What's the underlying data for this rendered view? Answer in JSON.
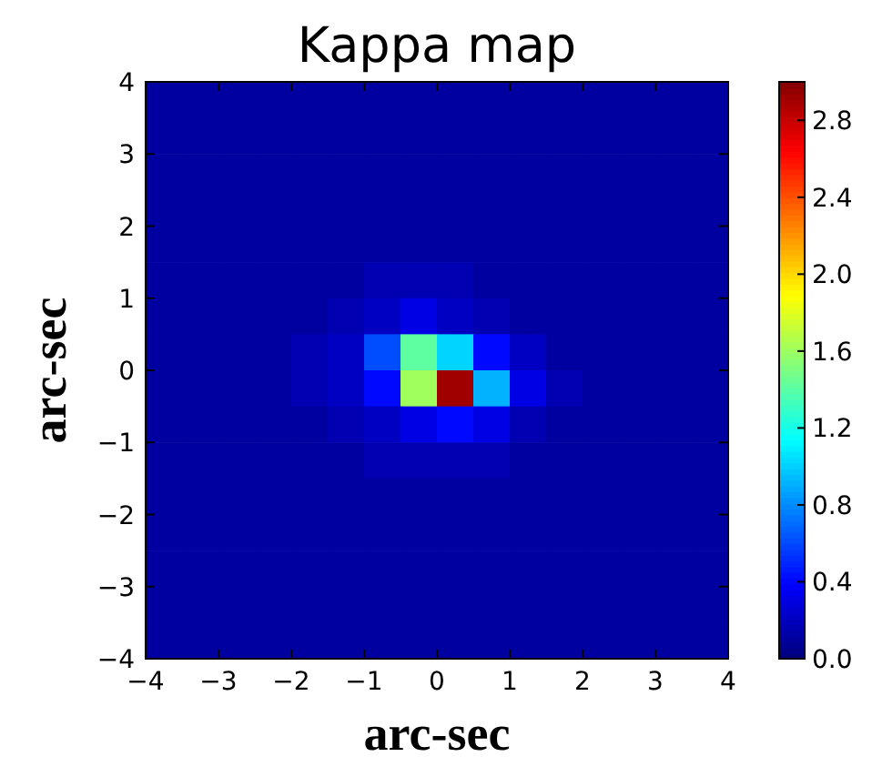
{
  "chart_data": {
    "type": "heatmap",
    "title": "Kappa map",
    "xlabel": "arc-sec",
    "ylabel": "arc-sec",
    "x": [
      -3.75,
      -3.25,
      -2.75,
      -2.25,
      -1.75,
      -1.25,
      -0.75,
      -0.25,
      0.25,
      0.75,
      1.25,
      1.75,
      2.25,
      2.75,
      3.25,
      3.75
    ],
    "y": [
      3.75,
      3.25,
      2.75,
      2.25,
      1.75,
      1.25,
      0.75,
      0.25,
      -0.25,
      -0.75,
      -1.25,
      -1.75,
      -2.25,
      -2.75,
      -3.25,
      -3.75
    ],
    "xlim": [
      -4,
      4
    ],
    "xticks": [
      -4,
      -3,
      -2,
      -1,
      0,
      1,
      2,
      3,
      4
    ],
    "ylim": [
      -4,
      4
    ],
    "yticks": [
      -4,
      -3,
      -2,
      -1,
      0,
      1,
      2,
      3,
      4
    ],
    "cells": [
      [
        0.1,
        0.1,
        0.1,
        0.1,
        0.1,
        0.1,
        0.1,
        0.1,
        0.1,
        0.1,
        0.1,
        0.1,
        0.1,
        0.1,
        0.1,
        0.1
      ],
      [
        0.1,
        0.1,
        0.1,
        0.1,
        0.1,
        0.1,
        0.1,
        0.1,
        0.1,
        0.1,
        0.1,
        0.1,
        0.1,
        0.1,
        0.1,
        0.1
      ],
      [
        0.1,
        0.1,
        0.1,
        0.1,
        0.1,
        0.1,
        0.1,
        0.1,
        0.1,
        0.1,
        0.1,
        0.1,
        0.1,
        0.1,
        0.1,
        0.1
      ],
      [
        0.1,
        0.1,
        0.1,
        0.1,
        0.1,
        0.1,
        0.1,
        0.1,
        0.1,
        0.1,
        0.1,
        0.1,
        0.1,
        0.1,
        0.1,
        0.1
      ],
      [
        0.1,
        0.1,
        0.1,
        0.1,
        0.1,
        0.1,
        0.1,
        0.1,
        0.1,
        0.1,
        0.1,
        0.1,
        0.1,
        0.1,
        0.1,
        0.1
      ],
      [
        0.1,
        0.1,
        0.1,
        0.1,
        0.1,
        0.1,
        0.15,
        0.15,
        0.15,
        0.1,
        0.1,
        0.1,
        0.1,
        0.1,
        0.1,
        0.1
      ],
      [
        0.1,
        0.1,
        0.1,
        0.1,
        0.1,
        0.15,
        0.2,
        0.3,
        0.2,
        0.15,
        0.1,
        0.1,
        0.1,
        0.1,
        0.1,
        0.1
      ],
      [
        0.1,
        0.1,
        0.1,
        0.1,
        0.15,
        0.2,
        0.6,
        1.4,
        1.0,
        0.4,
        0.2,
        0.1,
        0.1,
        0.1,
        0.1,
        0.1
      ],
      [
        0.1,
        0.1,
        0.1,
        0.1,
        0.15,
        0.2,
        0.4,
        1.6,
        2.9,
        0.9,
        0.3,
        0.15,
        0.1,
        0.1,
        0.1,
        0.1
      ],
      [
        0.1,
        0.1,
        0.1,
        0.1,
        0.1,
        0.15,
        0.2,
        0.3,
        0.4,
        0.3,
        0.15,
        0.1,
        0.1,
        0.1,
        0.1,
        0.1
      ],
      [
        0.1,
        0.1,
        0.1,
        0.1,
        0.1,
        0.1,
        0.15,
        0.15,
        0.15,
        0.15,
        0.1,
        0.1,
        0.1,
        0.1,
        0.1,
        0.1
      ],
      [
        0.1,
        0.1,
        0.1,
        0.1,
        0.1,
        0.1,
        0.1,
        0.1,
        0.1,
        0.1,
        0.1,
        0.1,
        0.1,
        0.1,
        0.1,
        0.1
      ],
      [
        0.1,
        0.1,
        0.1,
        0.1,
        0.1,
        0.1,
        0.1,
        0.1,
        0.1,
        0.1,
        0.1,
        0.1,
        0.1,
        0.1,
        0.1,
        0.1
      ],
      [
        0.1,
        0.1,
        0.1,
        0.1,
        0.1,
        0.1,
        0.1,
        0.1,
        0.1,
        0.1,
        0.1,
        0.1,
        0.1,
        0.1,
        0.1,
        0.1
      ],
      [
        0.1,
        0.1,
        0.1,
        0.1,
        0.1,
        0.1,
        0.1,
        0.1,
        0.1,
        0.1,
        0.1,
        0.1,
        0.1,
        0.1,
        0.1,
        0.1
      ],
      [
        0.1,
        0.1,
        0.1,
        0.1,
        0.1,
        0.1,
        0.1,
        0.1,
        0.1,
        0.1,
        0.1,
        0.1,
        0.1,
        0.1,
        0.1,
        0.1
      ]
    ],
    "clim": [
      0,
      3
    ],
    "cticks": [
      {
        "value": 0,
        "label": "0.0"
      },
      {
        "value": 0.4,
        "label": "0.4"
      },
      {
        "value": 0.8,
        "label": "0.8"
      },
      {
        "value": 1.2,
        "label": "1.2"
      },
      {
        "value": 1.6,
        "label": "1.6"
      },
      {
        "value": 2.0,
        "label": "2.0"
      },
      {
        "value": 2.4,
        "label": "2.4"
      },
      {
        "value": 2.8,
        "label": "2.8"
      }
    ]
  }
}
